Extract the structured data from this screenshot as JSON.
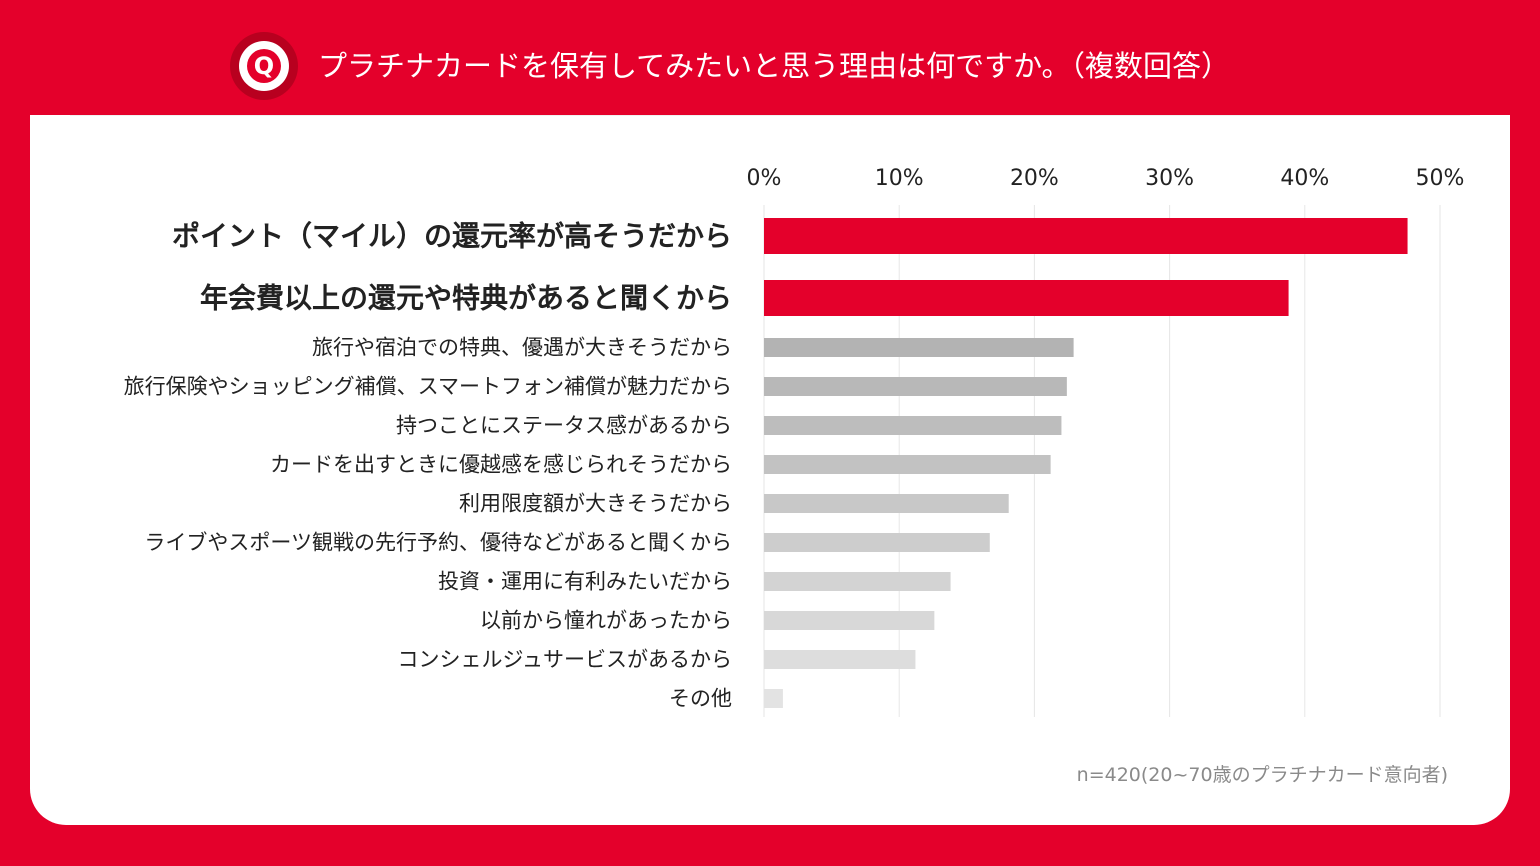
{
  "header": {
    "badge_letter": "Q",
    "title": "プラチナカードを保有してみたいと思う理由は何ですか。（複数回答）"
  },
  "colors": {
    "accent": "#e4002b",
    "highlight_bar": "#e4002b",
    "grid": "#e6e6e6"
  },
  "chart_data": {
    "type": "bar",
    "orientation": "horizontal",
    "title": "プラチナカードを保有してみたいと思う理由は何ですか。（複数回答）",
    "xlim": [
      0,
      50
    ],
    "ticks": [
      0,
      10,
      20,
      30,
      40,
      50
    ],
    "tick_labels": [
      "0%",
      "10%",
      "20%",
      "30%",
      "40%",
      "50%"
    ],
    "grid": true,
    "categories": [
      "ポイント（マイル）の還元率が高そうだから",
      "年会費以上の還元や特典があると聞くから",
      "旅行や宿泊での特典、優遇が大きそうだから",
      "旅行保険やショッピング補償、スマートフォン補償が魅力だから",
      "持つことにステータス感があるから",
      "カードを出すときに優越感を感じられそうだから",
      "利用限度額が大きそうだから",
      "ライブやスポーツ観戦の先行予約、優待などがあると聞くから",
      "投資・運用に有利みたいだから",
      "以前から憧れがあったから",
      "コンシェルジュサービスがあるから",
      "その他"
    ],
    "values": [
      47.6,
      38.8,
      22.9,
      22.4,
      22.0,
      21.2,
      18.1,
      16.7,
      13.8,
      12.6,
      11.2,
      1.4
    ],
    "highlighted": [
      true,
      true,
      false,
      false,
      false,
      false,
      false,
      false,
      false,
      false,
      false,
      false
    ],
    "bar_colors": [
      "#e4002b",
      "#e4002b",
      "#b3b3b3",
      "#b8b8b8",
      "#bdbdbd",
      "#c2c2c2",
      "#c8c8c8",
      "#cdcdcd",
      "#d3d3d3",
      "#d8d8d8",
      "#dddddd",
      "#e3e3e3"
    ]
  },
  "footnote": "n=420(20~70歳のプラチナカード意向者)"
}
